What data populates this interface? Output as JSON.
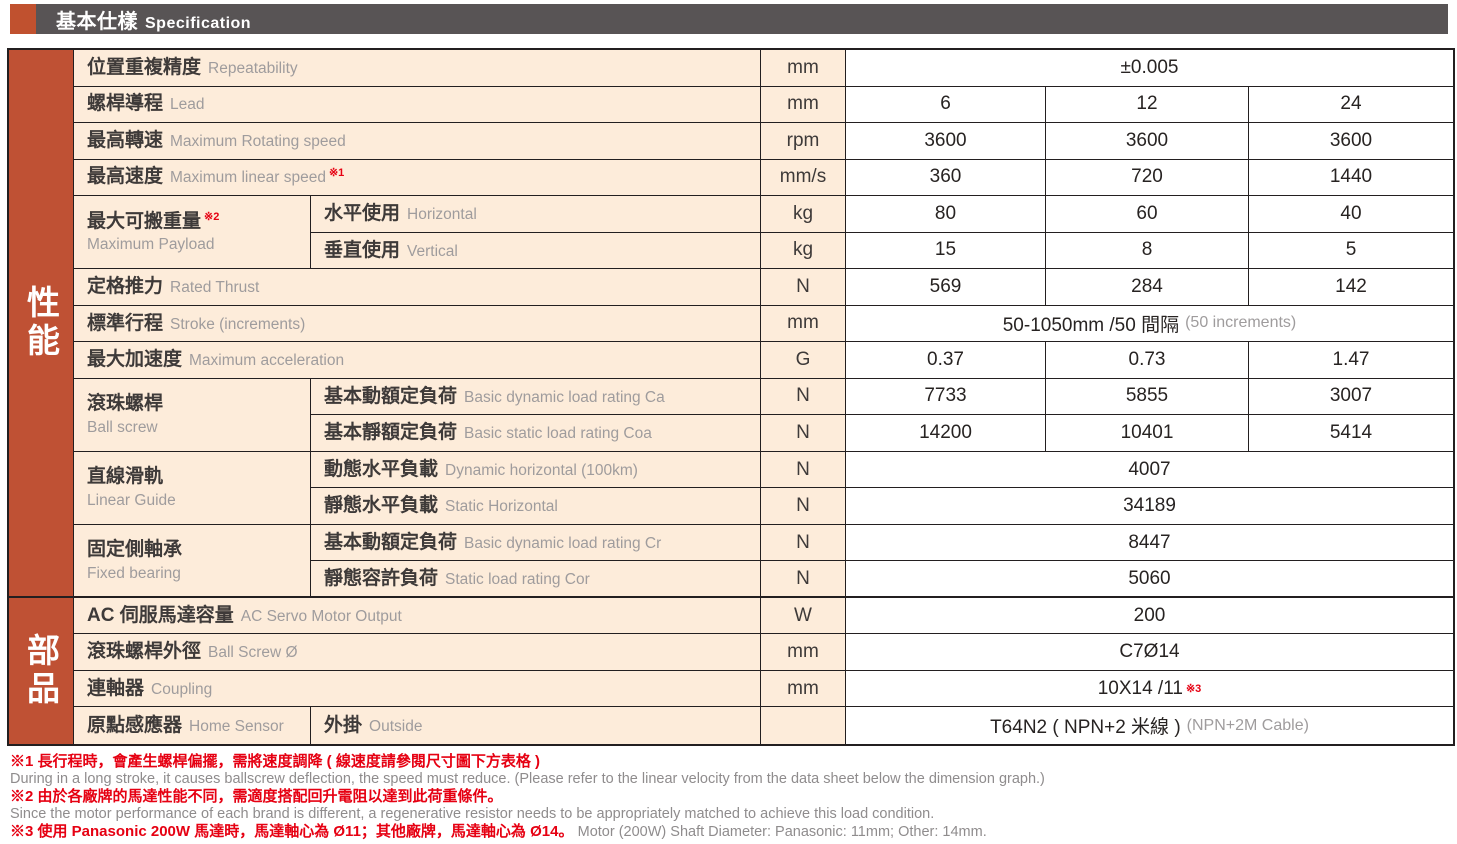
{
  "header": {
    "title_zh": "基本仕樣",
    "title_en": "Specification"
  },
  "sections": {
    "performance": "性能",
    "parts": "部品"
  },
  "colors": {
    "accent_red": "#bf5134",
    "title_square": "#c0512f",
    "header_bar": "#585455",
    "cell_cream": "#fdecda",
    "grid_border": "#231f20",
    "note_red": "#e60012",
    "muted_gray": "#9f9c9d"
  },
  "rows": {
    "repeatability": {
      "zh": "位置重複精度",
      "en": "Repeatability",
      "unit": "mm",
      "value": "±0.005"
    },
    "lead": {
      "zh": "螺桿導程",
      "en": "Lead",
      "unit": "mm",
      "v1": "6",
      "v2": "12",
      "v3": "24"
    },
    "max_rpm": {
      "zh": "最高轉速",
      "en": "Maximum Rotating speed",
      "unit": "rpm",
      "v1": "3600",
      "v2": "3600",
      "v3": "3600"
    },
    "max_speed": {
      "zh": "最高速度",
      "en": "Maximum linear speed",
      "note": "※1",
      "unit": "mm/s",
      "v1": "360",
      "v2": "720",
      "v3": "1440"
    },
    "payload": {
      "zh": "最大可搬重量",
      "note": "※2",
      "en": "Maximum Payload",
      "horizontal": {
        "zh": "水平使用",
        "en": "Horizontal",
        "unit": "kg",
        "v1": "80",
        "v2": "60",
        "v3": "40"
      },
      "vertical": {
        "zh": "垂直使用",
        "en": "Vertical",
        "unit": "kg",
        "v1": "15",
        "v2": "8",
        "v3": "5"
      }
    },
    "rated_thrust": {
      "zh": "定格推力",
      "en": "Rated Thrust",
      "unit": "N",
      "v1": "569",
      "v2": "284",
      "v3": "142"
    },
    "stroke": {
      "zh": "標準行程",
      "en": "Stroke (increments)",
      "unit": "mm",
      "value": "50-1050mm /50 間隔",
      "value_sub": "(50 increments)"
    },
    "max_accel": {
      "zh": "最大加速度",
      "en": "Maximum acceleration",
      "unit": "G",
      "v1": "0.37",
      "v2": "0.73",
      "v3": "1.47"
    },
    "ball_screw": {
      "zh": "滾珠螺桿",
      "en": "Ball screw",
      "dynamic": {
        "zh": "基本動額定負荷",
        "en": "Basic dynamic load rating Ca",
        "unit": "N",
        "v1": "7733",
        "v2": "5855",
        "v3": "3007"
      },
      "static": {
        "zh": "基本靜額定負荷",
        "en": "Basic static load rating Coa",
        "unit": "N",
        "v1": "14200",
        "v2": "10401",
        "v3": "5414"
      }
    },
    "linear_guide": {
      "zh": "直線滑軌",
      "en": "Linear Guide",
      "dynamic": {
        "zh": "動態水平負載",
        "en": "Dynamic horizontal (100km)",
        "unit": "N",
        "value": "4007"
      },
      "static": {
        "zh": "靜態水平負載",
        "en": "Static Horizontal",
        "unit": "N",
        "value": "34189"
      }
    },
    "fixed_bearing": {
      "zh": "固定側軸承",
      "en": "Fixed bearing",
      "dynamic": {
        "zh": "基本動額定負荷",
        "en": "Basic dynamic load rating Cr",
        "unit": "N",
        "value": "8447"
      },
      "static": {
        "zh": "靜態容許負荷",
        "en": "Static load rating Cor",
        "unit": "N",
        "value": "5060"
      }
    },
    "servo_output": {
      "zh": "AC 伺服馬達容量",
      "en": "AC Servo Motor Output",
      "unit": "W",
      "value": "200"
    },
    "screw_od": {
      "zh": "滾珠螺桿外徑",
      "en": "Ball Screw Ø",
      "unit": "mm",
      "value": "C7Ø14"
    },
    "coupling": {
      "zh": "連軸器",
      "en": "Coupling",
      "unit": "mm",
      "value": "10X14 /11",
      "note": "※3"
    },
    "home_sensor": {
      "zh": "原點感應器",
      "en": "Home Sensor",
      "sub_zh": "外掛",
      "sub_en": "Outside",
      "unit": "",
      "value": "T64N2 ( NPN+2 米線 )",
      "value_sub": "(NPN+2M Cable)"
    }
  },
  "footnotes": {
    "line1_zh": "※1 長行程時，會產生螺桿偏擺，需將速度調降 ( 線速度請參閱尺寸圖下方表格 )",
    "line1_en": "During in a long stroke, it causes ballscrew deflection, the speed must reduce. (Please refer to the linear velocity from the data sheet below the dimension graph.)",
    "line2_zh": "※2 由於各廠牌的馬達性能不同，需適度搭配回升電阻以達到此荷重條件。",
    "line2_en": "Since the motor performance of each brand is different, a regenerative resistor needs to be appropriately matched to achieve this load condition.",
    "line3_zh": "※3 使用 Panasonic 200W 馬達時，馬達軸心為 Ø11；其他廠牌，馬達軸心為 Ø14。",
    "line3_en": "Motor (200W) Shaft Diameter: Panasonic: 11mm; Other: 14mm."
  }
}
